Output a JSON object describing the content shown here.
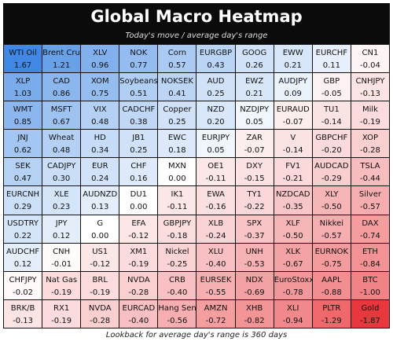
{
  "header": {
    "title": "Global Macro Heatmap",
    "subtitle": "Today's move / average day's range"
  },
  "footer": "Lookback for average day's range is 360 days",
  "color_scale": {
    "positive": "#2f7de1",
    "negative": "#e8383d",
    "neutral": "#ffffff"
  },
  "grid": {
    "rows": [
      [
        {
          "label": "WTI Oil",
          "value": 1.67,
          "value_label": "1.67"
        },
        {
          "label": "Brent Crude",
          "value": 1.21,
          "value_label": "1.21"
        },
        {
          "label": "XLV",
          "value": 0.96,
          "value_label": "0.96"
        },
        {
          "label": "NOK",
          "value": 0.77,
          "value_label": "0.77"
        },
        {
          "label": "Corn",
          "value": 0.57,
          "value_label": "0.57"
        },
        {
          "label": "EURGBP",
          "value": 0.43,
          "value_label": "0.43"
        },
        {
          "label": "GOOG",
          "value": 0.26,
          "value_label": "0.26"
        },
        {
          "label": "EWW",
          "value": 0.21,
          "value_label": "0.21"
        },
        {
          "label": "EURCHF",
          "value": 0.11,
          "value_label": "0.11"
        },
        {
          "label": "CN1",
          "value": -0.04,
          "value_label": "-0.04"
        }
      ],
      [
        {
          "label": "XLP",
          "value": 1.03,
          "value_label": "1.03"
        },
        {
          "label": "CAD",
          "value": 0.86,
          "value_label": "0.86"
        },
        {
          "label": "XOM",
          "value": 0.75,
          "value_label": "0.75"
        },
        {
          "label": "Soybeans",
          "value": 0.51,
          "value_label": "0.51"
        },
        {
          "label": "NOKSEK",
          "value": 0.41,
          "value_label": "0.41"
        },
        {
          "label": "AUD",
          "value": 0.25,
          "value_label": "0.25"
        },
        {
          "label": "EWZ",
          "value": 0.21,
          "value_label": "0.21"
        },
        {
          "label": "AUDJPY",
          "value": 0.09,
          "value_label": "0.09"
        },
        {
          "label": "GBP",
          "value": -0.05,
          "value_label": "-0.05"
        },
        {
          "label": "CNHJPY",
          "value": -0.13,
          "value_label": "-0.13"
        }
      ],
      [
        {
          "label": "WMT",
          "value": 0.85,
          "value_label": "0.85"
        },
        {
          "label": "MSFT",
          "value": 0.67,
          "value_label": "0.67"
        },
        {
          "label": "VIX",
          "value": 0.48,
          "value_label": "0.48"
        },
        {
          "label": "CADCHF",
          "value": 0.38,
          "value_label": "0.38"
        },
        {
          "label": "Copper",
          "value": 0.25,
          "value_label": "0.25"
        },
        {
          "label": "NZD",
          "value": 0.2,
          "value_label": "0.20"
        },
        {
          "label": "NZDJPY",
          "value": 0.05,
          "value_label": "0.05"
        },
        {
          "label": "EURAUD",
          "value": -0.07,
          "value_label": "-0.07"
        },
        {
          "label": "TU1",
          "value": -0.14,
          "value_label": "-0.14"
        },
        {
          "label": "Milk",
          "value": -0.19,
          "value_label": "-0.19"
        }
      ],
      [
        {
          "label": "JNJ",
          "value": 0.62,
          "value_label": "0.62"
        },
        {
          "label": "Wheat",
          "value": 0.48,
          "value_label": "0.48"
        },
        {
          "label": "HD",
          "value": 0.34,
          "value_label": "0.34"
        },
        {
          "label": "JB1",
          "value": 0.25,
          "value_label": "0.25"
        },
        {
          "label": "EWC",
          "value": 0.18,
          "value_label": "0.18"
        },
        {
          "label": "EURJPY",
          "value": 0.05,
          "value_label": "0.05"
        },
        {
          "label": "ZAR",
          "value": -0.07,
          "value_label": "-0.07"
        },
        {
          "label": "V",
          "value": -0.14,
          "value_label": "-0.14"
        },
        {
          "label": "GBPCHF",
          "value": -0.2,
          "value_label": "-0.20"
        },
        {
          "label": "XOP",
          "value": -0.28,
          "value_label": "-0.28"
        }
      ],
      [
        {
          "label": "SEK",
          "value": 0.47,
          "value_label": "0.47"
        },
        {
          "label": "CADJPY",
          "value": 0.3,
          "value_label": "0.30"
        },
        {
          "label": "EUR",
          "value": 0.24,
          "value_label": "0.24"
        },
        {
          "label": "CHF",
          "value": 0.16,
          "value_label": "0.16"
        },
        {
          "label": "MXN",
          "value": 0,
          "value_label": "0.00"
        },
        {
          "label": "OE1",
          "value": -0.11,
          "value_label": "-0.11"
        },
        {
          "label": "DXY",
          "value": -0.15,
          "value_label": "-0.15"
        },
        {
          "label": "FV1",
          "value": -0.21,
          "value_label": "-0.21"
        },
        {
          "label": "AUDCAD",
          "value": -0.29,
          "value_label": "-0.29"
        },
        {
          "label": "TSLA",
          "value": -0.44,
          "value_label": "-0.44"
        }
      ],
      [
        {
          "label": "EURCNH",
          "value": 0.29,
          "value_label": "0.29"
        },
        {
          "label": "XLE",
          "value": 0.23,
          "value_label": "0.23"
        },
        {
          "label": "AUDNZD",
          "value": 0.13,
          "value_label": "0.13"
        },
        {
          "label": "DU1",
          "value": 0,
          "value_label": "0.00"
        },
        {
          "label": "IK1",
          "value": -0.11,
          "value_label": "-0.11"
        },
        {
          "label": "EWA",
          "value": -0.16,
          "value_label": "-0.16"
        },
        {
          "label": "TY1",
          "value": -0.22,
          "value_label": "-0.22"
        },
        {
          "label": "NZDCAD",
          "value": -0.35,
          "value_label": "-0.35"
        },
        {
          "label": "XLY",
          "value": -0.5,
          "value_label": "-0.50"
        },
        {
          "label": "Silver",
          "value": -0.57,
          "value_label": "-0.57"
        }
      ],
      [
        {
          "label": "USDTRY",
          "value": 0.22,
          "value_label": "0.22"
        },
        {
          "label": "JPY",
          "value": 0.12,
          "value_label": "0.12"
        },
        {
          "label": "G",
          "value": 0,
          "value_label": "0.00"
        },
        {
          "label": "EFA",
          "value": -0.12,
          "value_label": "-0.12"
        },
        {
          "label": "GBPJPY",
          "value": -0.18,
          "value_label": "-0.18"
        },
        {
          "label": "XLB",
          "value": -0.24,
          "value_label": "-0.24"
        },
        {
          "label": "SPX",
          "value": -0.37,
          "value_label": "-0.37"
        },
        {
          "label": "XLF",
          "value": -0.5,
          "value_label": "-0.50"
        },
        {
          "label": "Nikkei",
          "value": -0.57,
          "value_label": "-0.57"
        },
        {
          "label": "DAX",
          "value": -0.74,
          "value_label": "-0.74"
        }
      ],
      [
        {
          "label": "AUDCHF",
          "value": 0.12,
          "value_label": "0.12"
        },
        {
          "label": "CNH",
          "value": -0.01,
          "value_label": "-0.01"
        },
        {
          "label": "US1",
          "value": -0.12,
          "value_label": "-0.12"
        },
        {
          "label": "XM1",
          "value": -0.19,
          "value_label": "-0.19"
        },
        {
          "label": "Nickel",
          "value": -0.25,
          "value_label": "-0.25"
        },
        {
          "label": "XLU",
          "value": -0.4,
          "value_label": "-0.40"
        },
        {
          "label": "UNH",
          "value": -0.53,
          "value_label": "-0.53"
        },
        {
          "label": "XLK",
          "value": -0.67,
          "value_label": "-0.67"
        },
        {
          "label": "EURNOK",
          "value": -0.75,
          "value_label": "-0.75"
        },
        {
          "label": "ETH",
          "value": -0.84,
          "value_label": "-0.84"
        }
      ],
      [
        {
          "label": "CHFJPY",
          "value": -0.02,
          "value_label": "-0.02"
        },
        {
          "label": "Nat Gas",
          "value": -0.19,
          "value_label": "-0.19"
        },
        {
          "label": "BRL",
          "value": -0.19,
          "value_label": "-0.19"
        },
        {
          "label": "NVDA",
          "value": -0.28,
          "value_label": "-0.28"
        },
        {
          "label": "CRB",
          "value": -0.4,
          "value_label": "-0.40"
        },
        {
          "label": "EURSEK",
          "value": -0.55,
          "value_label": "-0.55"
        },
        {
          "label": "NDX",
          "value": -0.69,
          "value_label": "-0.69"
        },
        {
          "label": "EuroStoxx",
          "value": -0.78,
          "value_label": "-0.78"
        },
        {
          "label": "AAPL",
          "value": -0.88,
          "value_label": "-0.88"
        },
        {
          "label": "BTC",
          "value": -1.0,
          "value_label": "-1.00"
        }
      ],
      [
        {
          "label": "BRK/B",
          "value": -0.13,
          "value_label": "-0.13"
        },
        {
          "label": "RX1",
          "value": -0.19,
          "value_label": "-0.19"
        },
        {
          "label": "NVDA",
          "value": -0.28,
          "value_label": "-0.28"
        },
        {
          "label": "EURCAD",
          "value": -0.4,
          "value_label": "-0.40"
        },
        {
          "label": "Hang Seng",
          "value": -0.56,
          "value_label": "-0.56"
        },
        {
          "label": "AMZN",
          "value": -0.72,
          "value_label": "-0.72"
        },
        {
          "label": "XHB",
          "value": -0.82,
          "value_label": "-0.82"
        },
        {
          "label": "XLI",
          "value": -0.94,
          "value_label": "-0.94"
        },
        {
          "label": "PLTR",
          "value": -1.29,
          "value_label": "-1.29"
        },
        {
          "label": "Gold",
          "value": -1.87,
          "value_label": "-1.87"
        }
      ]
    ]
  }
}
